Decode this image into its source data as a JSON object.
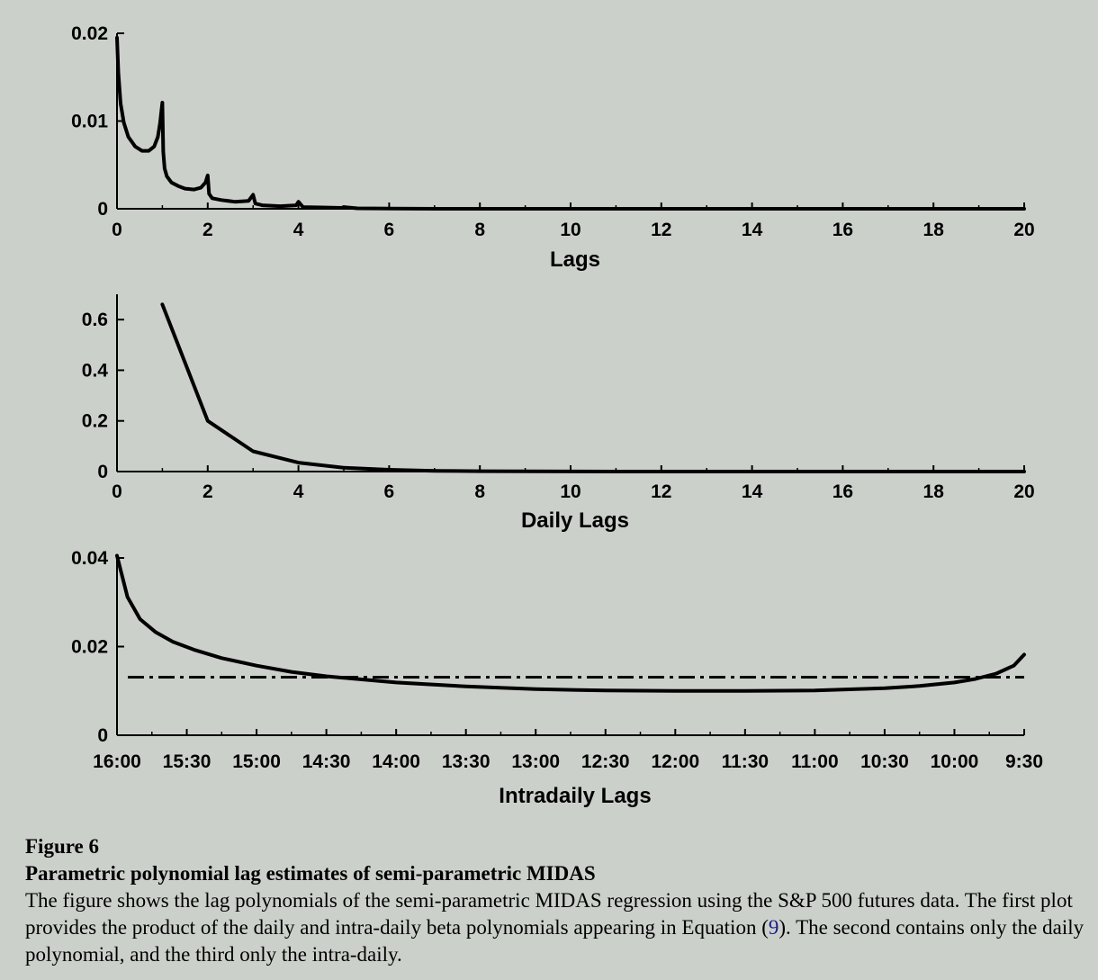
{
  "chart_data": [
    {
      "type": "line",
      "title": "",
      "xlabel": "Lags",
      "ylabel": "",
      "xlim": [
        0,
        20
      ],
      "ylim": [
        0,
        0.02
      ],
      "xticks": [
        "0",
        "2",
        "4",
        "6",
        "8",
        "10",
        "12",
        "14",
        "16",
        "18",
        "20"
      ],
      "yticks": [
        "0",
        "0.01",
        "0.02"
      ],
      "grid": false,
      "series": [
        {
          "x": [
            0,
            0.03,
            0.08,
            0.15,
            0.25,
            0.4,
            0.55,
            0.7,
            0.82,
            0.9,
            0.95,
            0.98,
            1.0,
            1.02,
            1.05,
            1.1,
            1.2,
            1.35,
            1.5,
            1.7,
            1.85,
            1.95,
            2.0,
            2.03,
            2.1,
            2.3,
            2.6,
            2.9,
            3.0,
            3.05,
            3.2,
            3.6,
            3.95,
            4.0,
            4.1,
            4.5,
            4.95,
            5.0,
            5.3,
            6.0,
            7.0,
            8.0,
            10.0,
            14.0,
            20.0
          ],
          "y": [
            0.0195,
            0.0155,
            0.012,
            0.0098,
            0.0082,
            0.0071,
            0.0066,
            0.0066,
            0.0071,
            0.0082,
            0.0098,
            0.0112,
            0.0121,
            0.0065,
            0.0046,
            0.0037,
            0.003,
            0.0026,
            0.0023,
            0.0022,
            0.0024,
            0.003,
            0.0038,
            0.0017,
            0.0012,
            0.001,
            0.0008,
            0.0009,
            0.0016,
            0.0006,
            0.0004,
            0.0003,
            0.0004,
            0.0008,
            0.0002,
            0.00015,
            0.0001,
            0.0002,
            5e-05,
            2e-05,
            5e-06,
            0.0,
            0.0,
            0.0,
            0.0
          ]
        }
      ]
    },
    {
      "type": "line",
      "title": "",
      "xlabel": "Daily Lags",
      "ylabel": "",
      "xlim": [
        0,
        20
      ],
      "ylim": [
        0,
        0.7
      ],
      "xticks": [
        "0",
        "2",
        "4",
        "6",
        "8",
        "10",
        "12",
        "14",
        "16",
        "18",
        "20"
      ],
      "yticks": [
        "0",
        "0.2",
        "0.4",
        "0.6"
      ],
      "grid": false,
      "series": [
        {
          "x": [
            1,
            2,
            3,
            4,
            5,
            6,
            7,
            8,
            9,
            10,
            11,
            12,
            13,
            14,
            15,
            16,
            17,
            18,
            19,
            20
          ],
          "y": [
            0.66,
            0.2,
            0.08,
            0.035,
            0.015,
            0.007,
            0.003,
            0.0015,
            0.0007,
            0.0003,
            0.0001,
            0,
            0,
            0,
            0,
            0,
            0,
            0,
            0,
            0
          ]
        }
      ]
    },
    {
      "type": "line",
      "title": "",
      "xlabel": "Intradaily Lags",
      "ylabel": "",
      "xlim": [
        0,
        13
      ],
      "ylim": [
        0,
        0.04
      ],
      "xticks": [
        "16:00",
        "15:30",
        "15:00",
        "14:30",
        "14:00",
        "13:30",
        "13:00",
        "12:30",
        "12:00",
        "11:30",
        "11:00",
        "10:30",
        "10:00",
        "9:30"
      ],
      "yticks": [
        "0",
        "0.02",
        "0.04"
      ],
      "grid": false,
      "reference_line": {
        "value": 0.0131,
        "style": "dash-dot"
      },
      "series": [
        {
          "x": [
            0,
            0.15,
            0.33,
            0.55,
            0.8,
            1.1,
            1.5,
            2.0,
            2.5,
            3.0,
            4.0,
            5.0,
            6.0,
            7.0,
            8.0,
            9.0,
            10.0,
            11.0,
            11.5,
            12.0,
            12.3,
            12.6,
            12.85,
            13.0
          ],
          "y": [
            0.0405,
            0.0312,
            0.0262,
            0.0233,
            0.0211,
            0.0193,
            0.0174,
            0.0157,
            0.0143,
            0.0133,
            0.0119,
            0.011,
            0.0104,
            0.0101,
            0.01,
            0.01,
            0.0101,
            0.0106,
            0.0111,
            0.0119,
            0.0127,
            0.0139,
            0.0157,
            0.0182
          ]
        }
      ]
    }
  ],
  "caption": {
    "figure_label": "Figure 6",
    "title": "Parametric polynomial lag estimates of semi-parametric MIDAS",
    "text_part1": "The figure shows the lag polynomials of the semi-parametric MIDAS regression using the S&P 500 futures data. The first plot provides the product of the daily and intra-daily beta polynomials appearing in Equation (",
    "equation_ref": "9",
    "text_part2": "). The second contains only the daily polynomial, and the third only the intra-daily."
  }
}
